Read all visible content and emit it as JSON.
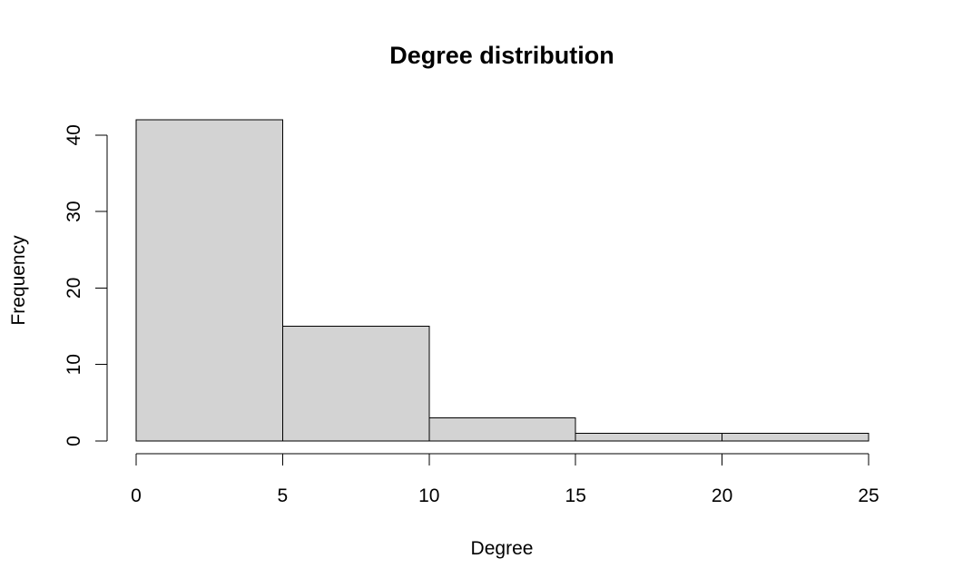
{
  "chart_data": {
    "type": "bar",
    "subtype": "histogram",
    "title": "Degree distribution",
    "xlabel": "Degree",
    "ylabel": "Frequency",
    "bins": [
      {
        "start": 0,
        "end": 5,
        "count": 42
      },
      {
        "start": 5,
        "end": 10,
        "count": 15
      },
      {
        "start": 10,
        "end": 15,
        "count": 3
      },
      {
        "start": 15,
        "end": 20,
        "count": 1
      },
      {
        "start": 20,
        "end": 25,
        "count": 1
      }
    ],
    "xlim": [
      0,
      25
    ],
    "ylim": [
      0,
      42
    ],
    "x_ticks": [
      0,
      5,
      10,
      15,
      20,
      25
    ],
    "y_ticks": [
      0,
      10,
      20,
      30,
      40
    ],
    "bar_color": "#d3d3d3",
    "edge_color": "#000000",
    "grid": false,
    "legend": "none"
  }
}
